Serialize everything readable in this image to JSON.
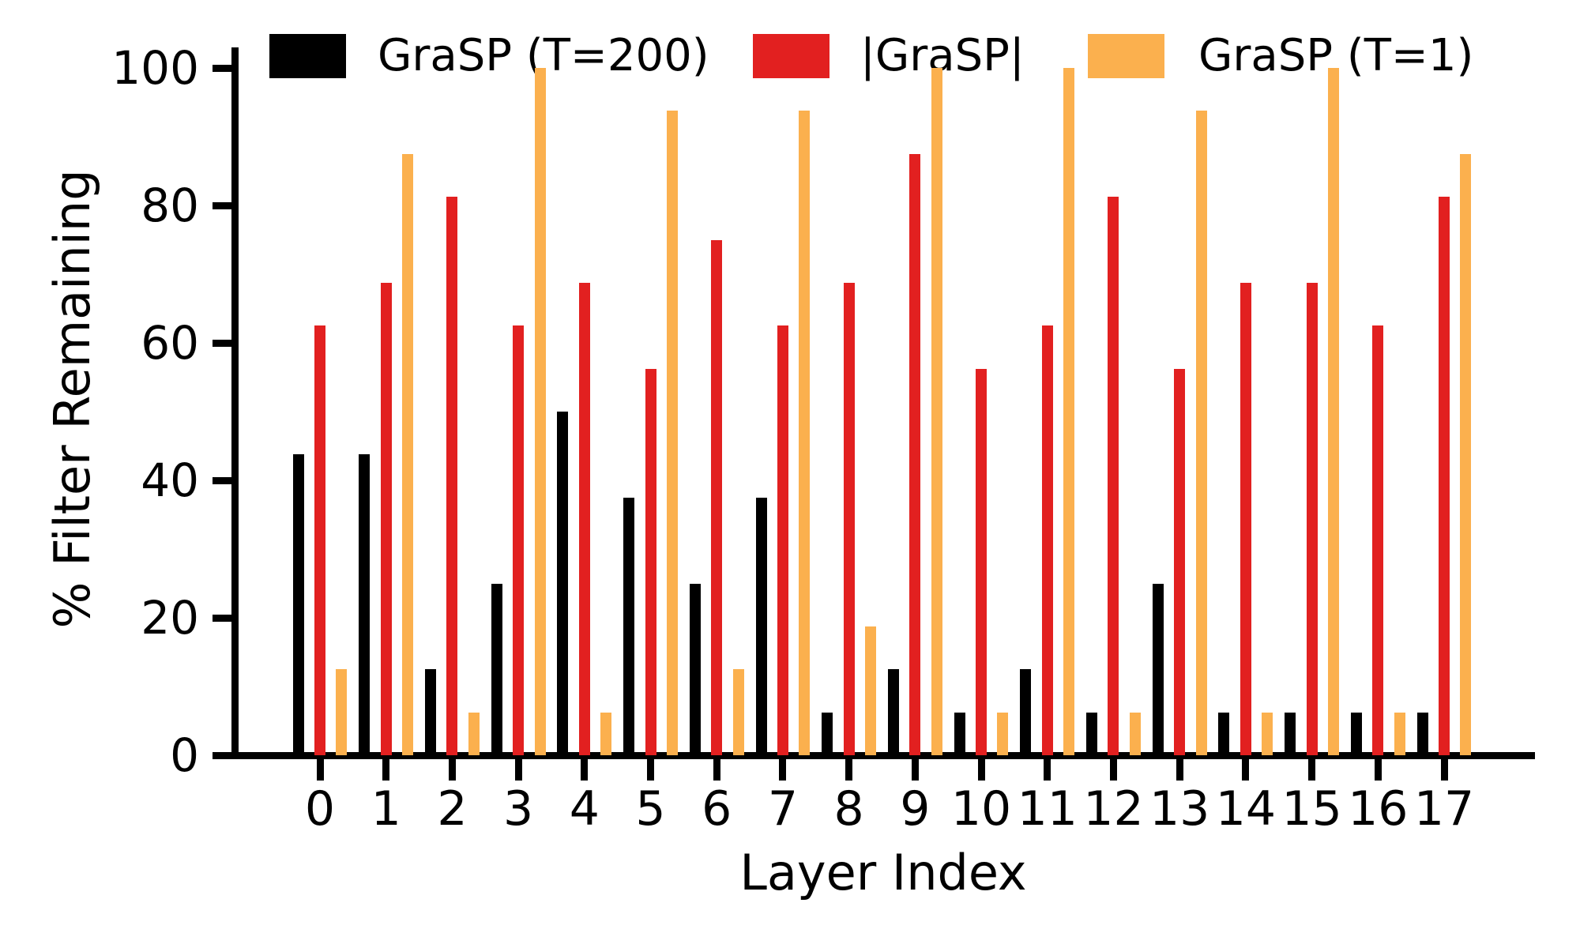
{
  "chart_data": {
    "type": "bar",
    "title": "",
    "xlabel": "Layer Index",
    "ylabel": "% Filter Remaining",
    "categories": [
      "0",
      "1",
      "2",
      "3",
      "4",
      "5",
      "6",
      "7",
      "8",
      "9",
      "10",
      "11",
      "12",
      "13",
      "14",
      "15",
      "16",
      "17"
    ],
    "series": [
      {
        "name": "GraSP (T=200)",
        "color": "#000000",
        "values": [
          43.75,
          43.75,
          12.5,
          25,
          50,
          37.5,
          25,
          37.5,
          6.25,
          12.5,
          6.25,
          12.5,
          6.25,
          25,
          6.25,
          6.25,
          6.25,
          6.25
        ]
      },
      {
        "name": "|GraSP|",
        "color": "#e22020",
        "values": [
          62.5,
          68.75,
          81.25,
          62.5,
          68.75,
          56.25,
          75,
          62.5,
          68.75,
          87.5,
          56.25,
          62.5,
          81.25,
          56.25,
          68.75,
          68.75,
          62.5,
          81.25
        ]
      },
      {
        "name": "GraSP (T=1)",
        "color": "#fbb04e",
        "values": [
          12.5,
          87.5,
          6.25,
          100,
          6.25,
          93.75,
          12.5,
          93.75,
          18.75,
          100,
          6.25,
          100,
          6.25,
          93.75,
          6.25,
          100,
          6.25,
          87.5
        ]
      }
    ],
    "ylim": [
      0,
      100
    ],
    "yticks": [
      "0",
      "20",
      "40",
      "60",
      "80",
      "100"
    ],
    "grid": false,
    "legend_position": "top"
  }
}
